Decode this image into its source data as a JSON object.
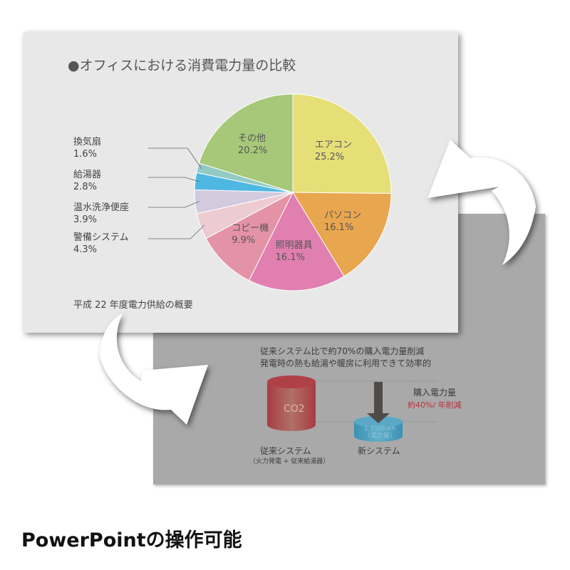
{
  "back_slide": {
    "line1": "従来システム比で約70%の購入電力量削減",
    "line2": "発電時の熱も給湯や暖房に利用できて効率的",
    "old_cylinder_label": "CO2",
    "new_cylinder_value": "1,550kwh",
    "new_cylinder_unit": "（電力量）",
    "purchase_label": "購入電力量",
    "reduction": "約40%/ 年削減",
    "old_system": "従来システム",
    "old_system_note": "（火力発電 + 従来給湯器）",
    "new_system": "新システム",
    "colors": {
      "old": "#a83c44",
      "new": "#3f98b8",
      "reduction": "#b8323c"
    }
  },
  "front_slide": {
    "title": "●オフィスにおける消費電力量の比較",
    "footer": "平成 22 年度電力供給の概要"
  },
  "chart_data": {
    "type": "pie",
    "title": "●オフィスにおける消費電力量の比較",
    "start": "12 o'clock, clockwise",
    "slices": [
      {
        "label": "エアコン",
        "value": 25.2,
        "text": "25.2%",
        "color": "#e6df78"
      },
      {
        "label": "パソコン",
        "value": 16.1,
        "text": "16.1%",
        "color": "#e8a64e"
      },
      {
        "label": "照明器具",
        "value": 16.1,
        "text": "16.1%",
        "color": "#e07fb0"
      },
      {
        "label": "コピー機",
        "value": 9.9,
        "text": "9.9%",
        "color": "#e493a6"
      },
      {
        "label": "警備システム",
        "value": 4.3,
        "text": "4.3%",
        "color": "#eccbd2"
      },
      {
        "label": "温水洗浄便座",
        "value": 3.9,
        "text": "3.9%",
        "color": "#d3cbdd"
      },
      {
        "label": "給湯器",
        "value": 2.8,
        "text": "2.8%",
        "color": "#4fb8e2"
      },
      {
        "label": "換気扇",
        "value": 1.6,
        "text": "1.6%",
        "color": "#93cac6"
      },
      {
        "label": "その他",
        "value": 20.2,
        "text": "20.2%",
        "color": "#a6c878"
      }
    ]
  },
  "caption": "PowerPointの操作可能"
}
